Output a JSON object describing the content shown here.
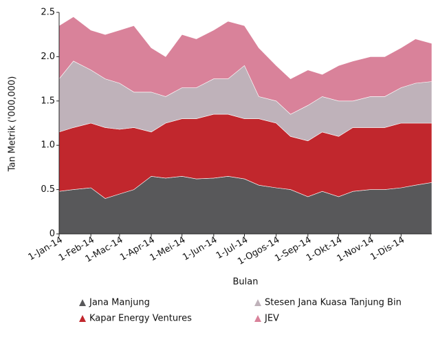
{
  "chart_data": {
    "type": "stacked_area",
    "y_label": "Tan Metrik ('000,000)",
    "x_label": "Bulan",
    "x": [
      1,
      15,
      32,
      46,
      60,
      74,
      91,
      105,
      121,
      135,
      152,
      166,
      182,
      196,
      213,
      227,
      244,
      258,
      274,
      288,
      305,
      319,
      335,
      349,
      365
    ],
    "xlim": [
      1,
      365
    ],
    "xticks": [
      {
        "value": 1,
        "label": "1-Jan-14"
      },
      {
        "value": 32,
        "label": "1-Feb-14"
      },
      {
        "value": 60,
        "label": "1-Mac-14"
      },
      {
        "value": 91,
        "label": "1-Apr-14"
      },
      {
        "value": 121,
        "label": "1-Mei-14"
      },
      {
        "value": 152,
        "label": "1-Jun-14"
      },
      {
        "value": 182,
        "label": "1-Jul-14"
      },
      {
        "value": 213,
        "label": "1-Ogos-14"
      },
      {
        "value": 244,
        "label": "1-Sep-14"
      },
      {
        "value": 274,
        "label": "1-Okt-14"
      },
      {
        "value": 305,
        "label": "1-Nov-14"
      },
      {
        "value": 335,
        "label": "1-Dis-14"
      }
    ],
    "ylim": [
      0,
      2.5
    ],
    "yticks": [
      0,
      0.5,
      {
        "value": 1,
        "label": "1.0"
      },
      1.5,
      {
        "value": 2,
        "label": "2.0"
      },
      2.5
    ],
    "series": [
      {
        "name": "Jana Manjung",
        "color": "#58585a",
        "values": [
          0.48,
          0.5,
          0.52,
          0.4,
          0.45,
          0.5,
          0.65,
          0.63,
          0.65,
          0.62,
          0.63,
          0.65,
          0.62,
          0.55,
          0.52,
          0.5,
          0.42,
          0.48,
          0.42,
          0.48,
          0.5,
          0.5,
          0.52,
          0.55,
          0.58
        ]
      },
      {
        "name": "Kapar Energy Ventures",
        "color": "#c1272d",
        "values": [
          0.67,
          0.7,
          0.73,
          0.8,
          0.73,
          0.7,
          0.5,
          0.62,
          0.65,
          0.68,
          0.72,
          0.7,
          0.68,
          0.75,
          0.73,
          0.6,
          0.63,
          0.67,
          0.68,
          0.72,
          0.7,
          0.7,
          0.73,
          0.7,
          0.67
        ]
      },
      {
        "name": "Stesen Jana Kuasa Tanjung Bin",
        "color": "#bfb2ba",
        "values": [
          0.6,
          0.75,
          0.6,
          0.55,
          0.52,
          0.4,
          0.45,
          0.3,
          0.35,
          0.35,
          0.4,
          0.4,
          0.6,
          0.25,
          0.25,
          0.25,
          0.4,
          0.4,
          0.4,
          0.3,
          0.35,
          0.35,
          0.4,
          0.45,
          0.47
        ]
      },
      {
        "name": "JEV",
        "color": "#d9829a",
        "values": [
          0.6,
          0.5,
          0.45,
          0.5,
          0.6,
          0.75,
          0.5,
          0.45,
          0.6,
          0.55,
          0.55,
          0.65,
          0.45,
          0.55,
          0.4,
          0.4,
          0.4,
          0.25,
          0.4,
          0.45,
          0.45,
          0.45,
          0.45,
          0.5,
          0.43
        ]
      }
    ]
  }
}
